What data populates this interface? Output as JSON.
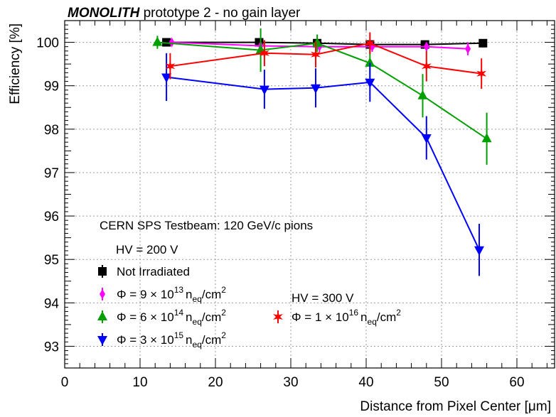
{
  "chart_data": {
    "type": "line",
    "title_bold": "MONOLITH",
    "title_rest": " prototype 2 - no gain layer",
    "xlabel": "Distance from Pixel Center [μm]",
    "ylabel": "Efficiency [%]",
    "xlim": [
      0,
      65
    ],
    "ylim": [
      92.5,
      100.5
    ],
    "x_ticks": [
      0,
      10,
      20,
      30,
      40,
      50,
      60
    ],
    "y_ticks": [
      93,
      94,
      95,
      96,
      97,
      98,
      99,
      100
    ],
    "grid": true,
    "annotations": {
      "beam": "CERN SPS Testbeam: 120 GeV/c pions",
      "hv200": "HV = 200 V",
      "hv300": "HV = 300 V"
    },
    "series": [
      {
        "name": "Not Irradiated",
        "legend_parts": [],
        "color": "#000000",
        "marker": "square",
        "x": [
          13.5,
          25.8,
          33.5,
          40.5,
          47.8,
          55.5
        ],
        "y": [
          100.0,
          100.0,
          99.98,
          99.95,
          99.95,
          99.98
        ],
        "err": [
          0.05,
          0.05,
          0.05,
          0.05,
          0.05,
          0.05
        ]
      },
      {
        "name": "",
        "legend_parts": [
          "Φ = 9",
          "× 10",
          "13",
          "n",
          "eq",
          "/cm",
          "2"
        ],
        "color": "#ff00ff",
        "marker": "diamond",
        "x": [
          14.2,
          26.0,
          33.8,
          40.8,
          48.0,
          53.5
        ],
        "y": [
          100.0,
          99.92,
          99.9,
          99.9,
          99.9,
          99.85
        ],
        "err": [
          0.08,
          0.12,
          0.12,
          0.12,
          0.1,
          0.15
        ]
      },
      {
        "name": "",
        "legend_parts": [
          "Φ = 6",
          "× 10",
          "14",
          "n",
          "eq",
          "/cm",
          "2"
        ],
        "color": "#00a000",
        "marker": "triangle-up",
        "x": [
          12.3,
          26.0,
          33.5,
          40.5,
          47.5,
          56.0
        ],
        "y": [
          100.0,
          99.82,
          99.98,
          99.52,
          98.77,
          97.78
        ],
        "err": [
          0.15,
          0.5,
          0.2,
          0.35,
          0.5,
          0.6
        ]
      },
      {
        "name": "",
        "legend_parts": [
          "Φ = 3",
          "× 10",
          "15",
          "n",
          "eq",
          "/cm",
          "2"
        ],
        "color": "#0000ff",
        "marker": "triangle-down",
        "x": [
          13.5,
          26.5,
          33.3,
          40.5,
          48.0,
          55.0
        ],
        "y": [
          99.2,
          98.92,
          98.95,
          99.08,
          97.8,
          95.22
        ],
        "err": [
          0.55,
          0.45,
          0.45,
          0.45,
          0.5,
          0.6
        ]
      },
      {
        "name": "",
        "legend_parts": [
          "Φ = 1",
          "× 10",
          "16",
          "n",
          "eq",
          "/cm",
          "2"
        ],
        "color": "#ff0000",
        "marker": "star",
        "x": [
          14.0,
          26.5,
          33.3,
          40.5,
          48.0,
          55.3
        ],
        "y": [
          99.45,
          99.75,
          99.72,
          99.98,
          99.45,
          99.28
        ],
        "err": [
          0.3,
          0.3,
          0.3,
          0.25,
          0.35,
          0.35
        ]
      }
    ]
  }
}
